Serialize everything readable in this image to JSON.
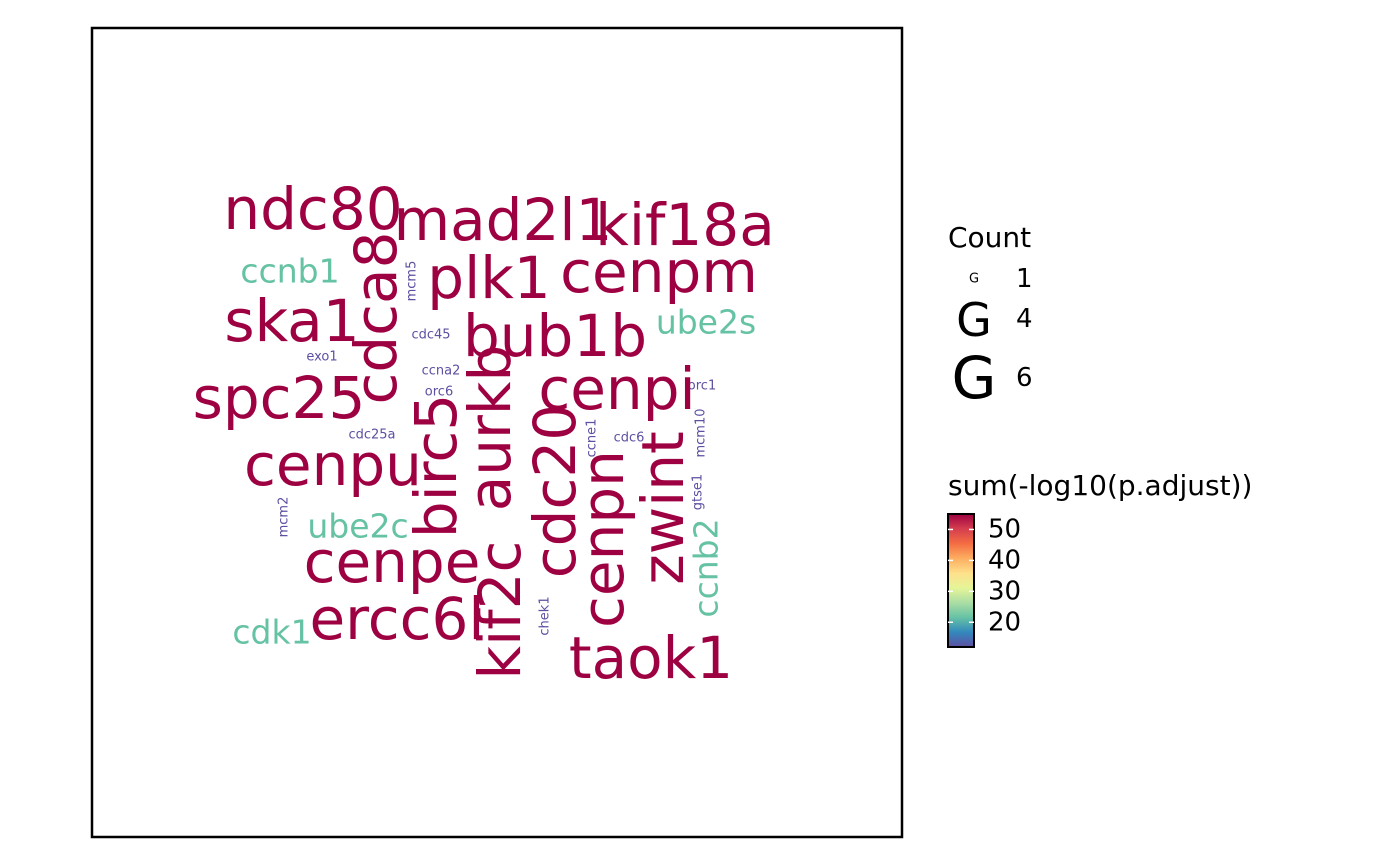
{
  "chart_data": {
    "type": "wordcloud",
    "colors": {
      "high": "#9E0142",
      "mid": "#66C2A5",
      "low": "#5E4FA2"
    },
    "words": [
      {
        "text": "ndc80",
        "count": 6,
        "color": "#9E0142"
      },
      {
        "text": "mad2l1",
        "count": 6,
        "color": "#9E0142"
      },
      {
        "text": "kif18a",
        "count": 6,
        "color": "#9E0142"
      },
      {
        "text": "cdca8",
        "count": 6,
        "color": "#9E0142"
      },
      {
        "text": "ccnb1",
        "count": 4,
        "color": "#66C2A5"
      },
      {
        "text": "mcm5",
        "count": 1,
        "color": "#5E4FA2"
      },
      {
        "text": "plk1",
        "count": 6,
        "color": "#9E0142"
      },
      {
        "text": "cenpm",
        "count": 6,
        "color": "#9E0142"
      },
      {
        "text": "ska1",
        "count": 6,
        "color": "#9E0142"
      },
      {
        "text": "bub1b",
        "count": 6,
        "color": "#9E0142"
      },
      {
        "text": "ube2s",
        "count": 4,
        "color": "#66C2A5"
      },
      {
        "text": "cdc45",
        "count": 1,
        "color": "#5E4FA2"
      },
      {
        "text": "exo1",
        "count": 1,
        "color": "#5E4FA2"
      },
      {
        "text": "ccna2",
        "count": 1,
        "color": "#5E4FA2"
      },
      {
        "text": "orc6",
        "count": 1,
        "color": "#5E4FA2"
      },
      {
        "text": "orc1",
        "count": 1,
        "color": "#5E4FA2"
      },
      {
        "text": "spc25",
        "count": 6,
        "color": "#9E0142"
      },
      {
        "text": "cenpi",
        "count": 6,
        "color": "#9E0142"
      },
      {
        "text": "aurkb",
        "count": 6,
        "color": "#9E0142"
      },
      {
        "text": "birc5",
        "count": 6,
        "color": "#9E0142"
      },
      {
        "text": "cdc25a",
        "count": 1,
        "color": "#5E4FA2"
      },
      {
        "text": "ccne1",
        "count": 1,
        "color": "#5E4FA2"
      },
      {
        "text": "cdc6",
        "count": 1,
        "color": "#5E4FA2"
      },
      {
        "text": "mcm10",
        "count": 1,
        "color": "#5E4FA2"
      },
      {
        "text": "cenpu",
        "count": 6,
        "color": "#9E0142"
      },
      {
        "text": "cdc20",
        "count": 6,
        "color": "#9E0142"
      },
      {
        "text": "zwint",
        "count": 6,
        "color": "#9E0142"
      },
      {
        "text": "gtse1",
        "count": 1,
        "color": "#5E4FA2"
      },
      {
        "text": "mcm2",
        "count": 1,
        "color": "#5E4FA2"
      },
      {
        "text": "ube2c",
        "count": 4,
        "color": "#66C2A5"
      },
      {
        "text": "cenpn",
        "count": 6,
        "color": "#9E0142"
      },
      {
        "text": "ccnb2",
        "count": 4,
        "color": "#66C2A5"
      },
      {
        "text": "cenpe",
        "count": 6,
        "color": "#9E0142"
      },
      {
        "text": "kif2c",
        "count": 6,
        "color": "#9E0142"
      },
      {
        "text": "ercc6l",
        "count": 6,
        "color": "#9E0142"
      },
      {
        "text": "chek1",
        "count": 1,
        "color": "#5E4FA2"
      },
      {
        "text": "cdk1",
        "count": 4,
        "color": "#66C2A5"
      },
      {
        "text": "taok1",
        "count": 6,
        "color": "#9E0142"
      }
    ],
    "legend_size": {
      "title": "Count",
      "entries": [
        {
          "glyph": "G",
          "label": "1",
          "count": 1
        },
        {
          "glyph": "G",
          "label": "4",
          "count": 4
        },
        {
          "glyph": "G",
          "label": "6",
          "count": 6
        }
      ]
    },
    "legend_color": {
      "title": "sum(-log10(p.adjust))",
      "ticks": [
        "50",
        "40",
        "30",
        "20"
      ],
      "tick_values": [
        50,
        40,
        30,
        20
      ],
      "range": [
        12,
        55
      ],
      "gradient": [
        "#9E0142",
        "#D53E4F",
        "#F46D43",
        "#FDAE61",
        "#FEE08B",
        "#E6F598",
        "#ABDDA4",
        "#66C2A5",
        "#3288BD",
        "#5E4FA2"
      ]
    }
  }
}
